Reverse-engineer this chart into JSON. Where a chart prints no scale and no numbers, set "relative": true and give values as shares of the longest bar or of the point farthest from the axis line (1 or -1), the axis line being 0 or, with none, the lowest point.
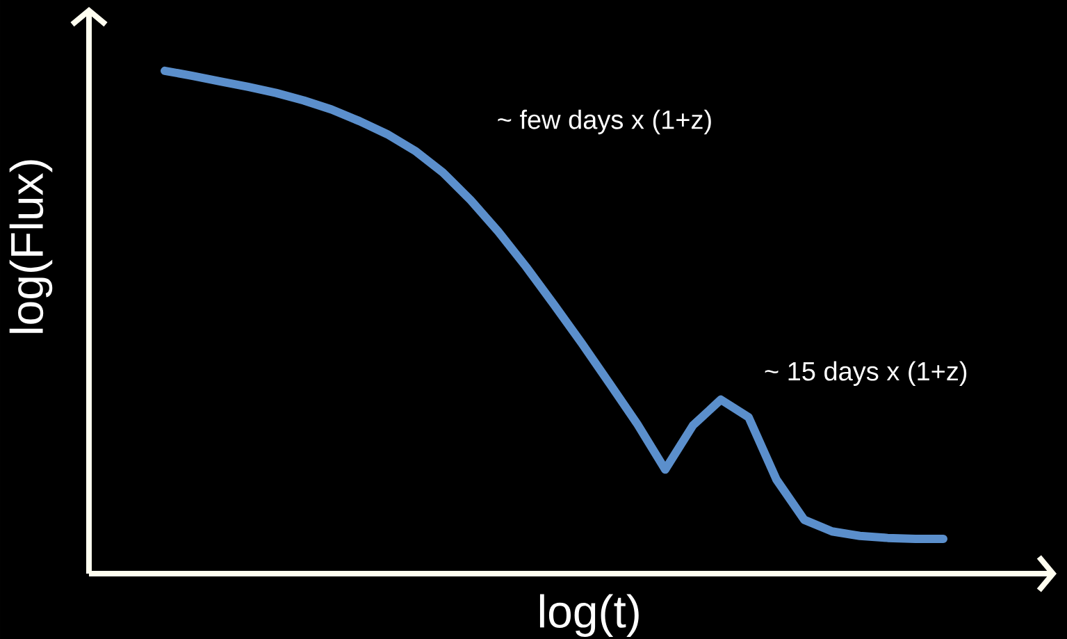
{
  "chart_data": {
    "type": "line",
    "relative": true,
    "xlabel": "log(t)",
    "ylabel": "log(Flux)",
    "annotations": [
      "~ few days x (1+z)",
      "~ 15 days x (1+z)"
    ],
    "categories": [
      null,
      null,
      null,
      null,
      null,
      null,
      null,
      null,
      null,
      null,
      null,
      null,
      null,
      null,
      null,
      null,
      null,
      null,
      null,
      null,
      null,
      null,
      null,
      null,
      null,
      null,
      null,
      null,
      null
    ],
    "series": [
      {
        "color": "#5b8fcc",
        "values": [
          1,
          0.99,
          0.979,
          0.968,
          0.956,
          0.941,
          0.923,
          0.9,
          0.874,
          0.841,
          0.798,
          0.743,
          0.68,
          0.61,
          0.535,
          0.458,
          0.378,
          0.297,
          0.207,
          0.295,
          0.346,
          0.311,
          0.187,
          0.107,
          0.084,
          0.075,
          0.071,
          0.069,
          0.069
        ]
      }
    ],
    "marker": "none",
    "line_style": "solid"
  }
}
